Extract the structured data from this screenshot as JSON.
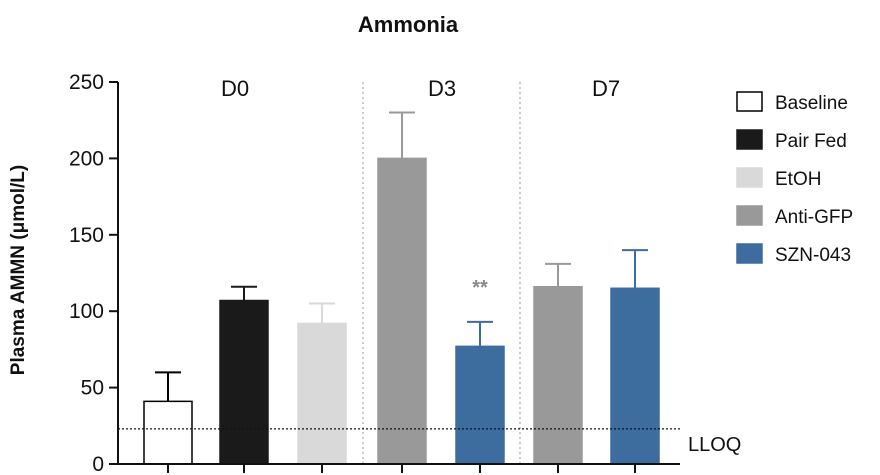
{
  "chart_data": {
    "type": "bar",
    "title": "Ammonia",
    "xlabel": "",
    "ylabel": "Plasma AMMN (μmol/L)",
    "ylim": [
      0,
      250
    ],
    "yticks": [
      "0",
      "50",
      "100",
      "150",
      "200",
      "250"
    ],
    "grid": false,
    "legend_position": "right",
    "groups": [
      "D0",
      "D3",
      "D7"
    ],
    "series": [
      {
        "name": "Baseline",
        "color": "#ffffff",
        "stroke": "#000000"
      },
      {
        "name": "Pair Fed",
        "color": "#1a1a1a",
        "stroke": "#1a1a1a"
      },
      {
        "name": "EtOH",
        "color": "#d9d9d9",
        "stroke": "#d9d9d9"
      },
      {
        "name": "Anti-GFP",
        "color": "#999999",
        "stroke": "#999999"
      },
      {
        "name": "SZN-043",
        "color": "#3d6d9e",
        "stroke": "#3d6d9e"
      }
    ],
    "bars": [
      {
        "group": "D0",
        "series": "Baseline",
        "value": 41,
        "error": 19
      },
      {
        "group": "D0",
        "series": "Pair Fed",
        "value": 107,
        "error": 9
      },
      {
        "group": "D0",
        "series": "EtOH",
        "value": 92,
        "error": 13
      },
      {
        "group": "D3",
        "series": "Anti-GFP",
        "value": 200,
        "error": 30
      },
      {
        "group": "D3",
        "series": "SZN-043",
        "value": 77,
        "error": 16,
        "annotation": "**"
      },
      {
        "group": "D7",
        "series": "Anti-GFP",
        "value": 116,
        "error": 15
      },
      {
        "group": "D7",
        "series": "SZN-043",
        "value": 115,
        "error": 25
      }
    ],
    "reference_line": {
      "label": "LLOQ",
      "value": 23
    }
  }
}
